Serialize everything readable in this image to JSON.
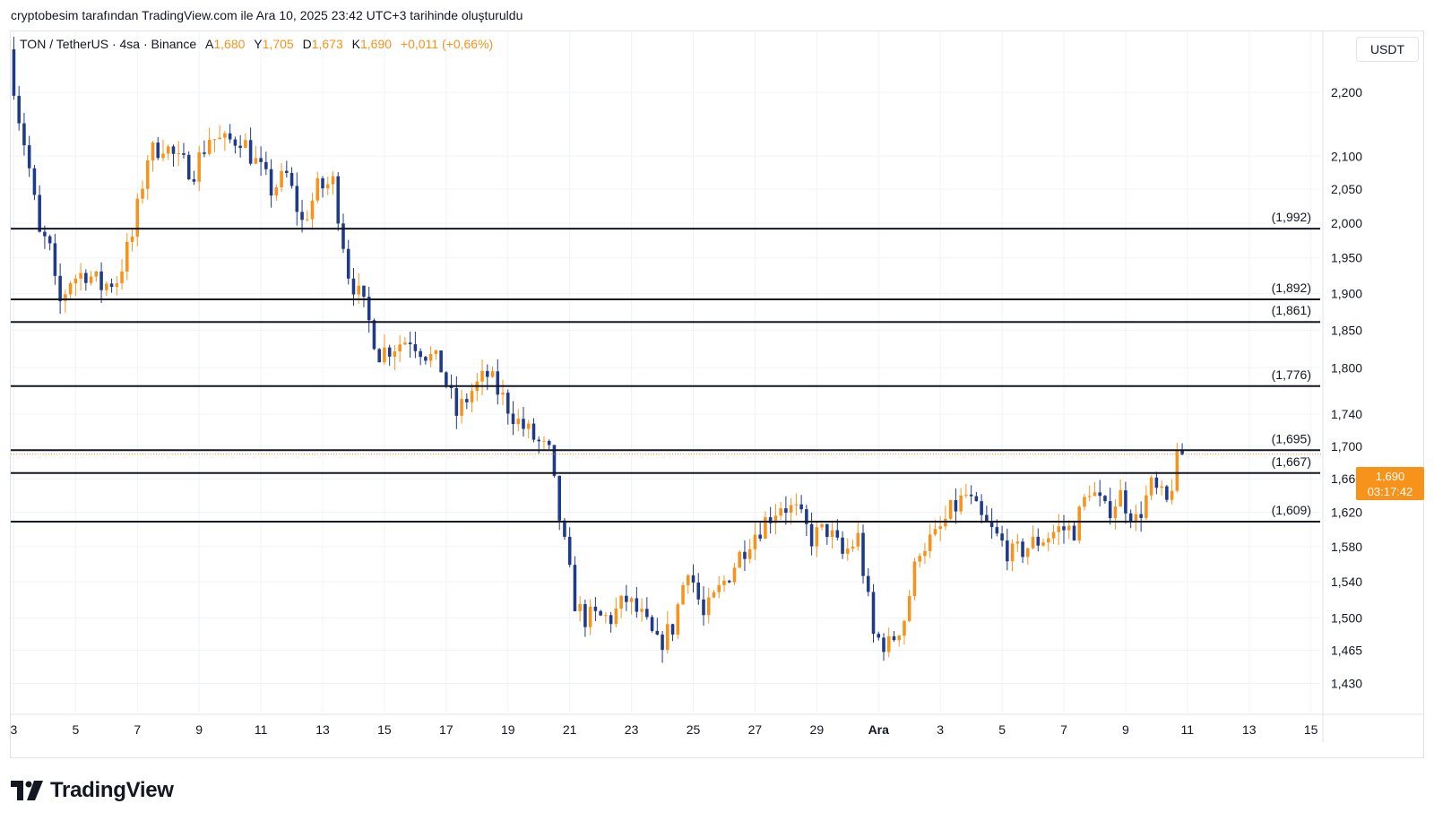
{
  "caption": "cryptobesim tarafından TradingView.com ile Ara 10, 2025 23:42 UTC+3 tarihinde oluşturuldu",
  "legend": {
    "symbol": "TON / TetherUS · 4sa · Binance",
    "open_label": "A",
    "open": "1,680",
    "high_label": "Y",
    "high": "1,705",
    "low_label": "D",
    "low": "1,673",
    "close_label": "K",
    "close": "1,690",
    "change": "+0,011 (+0,66%)"
  },
  "currency": "USDT",
  "price_tag": {
    "price": "1,690",
    "countdown": "03:17:42"
  },
  "brand": {
    "name": "TradingView"
  },
  "colors": {
    "up": "#f7931a",
    "down": "#1e3a8a",
    "level_line": "#131722",
    "grid": "#f0f3fa",
    "price_line": "#f7931a"
  },
  "chart_data": {
    "type": "candlestick",
    "scale": "log",
    "ylim": [
      1.4,
      2.3
    ],
    "y_ticks": [
      {
        "value": 2.2,
        "label": "2,200"
      },
      {
        "value": 2.1,
        "label": "2,100"
      },
      {
        "value": 2.05,
        "label": "2,050"
      },
      {
        "value": 2.0,
        "label": "2,000"
      },
      {
        "value": 1.95,
        "label": "1,950"
      },
      {
        "value": 1.9,
        "label": "1,900"
      },
      {
        "value": 1.85,
        "label": "1,850"
      },
      {
        "value": 1.8,
        "label": "1,800"
      },
      {
        "value": 1.74,
        "label": "1,740"
      },
      {
        "value": 1.7,
        "label": "1,700"
      },
      {
        "value": 1.66,
        "label": "1,660"
      },
      {
        "value": 1.62,
        "label": "1,620"
      },
      {
        "value": 1.58,
        "label": "1,580"
      },
      {
        "value": 1.54,
        "label": "1,540"
      },
      {
        "value": 1.5,
        "label": "1,500"
      },
      {
        "value": 1.465,
        "label": "1,465"
      },
      {
        "value": 1.43,
        "label": "1,430"
      }
    ],
    "x_ticks": [
      {
        "day": 3,
        "label": "3"
      },
      {
        "day": 5,
        "label": "5"
      },
      {
        "day": 7,
        "label": "7"
      },
      {
        "day": 9,
        "label": "9"
      },
      {
        "day": 11,
        "label": "11"
      },
      {
        "day": 13,
        "label": "13"
      },
      {
        "day": 15,
        "label": "15"
      },
      {
        "day": 17,
        "label": "17"
      },
      {
        "day": 19,
        "label": "19"
      },
      {
        "day": 21,
        "label": "21"
      },
      {
        "day": 23,
        "label": "23"
      },
      {
        "day": 25,
        "label": "25"
      },
      {
        "day": 27,
        "label": "27"
      },
      {
        "day": 29,
        "label": "29"
      },
      {
        "day": 31,
        "label": "Ara"
      },
      {
        "day": 33,
        "label": "3"
      },
      {
        "day": 35,
        "label": "5"
      },
      {
        "day": 37,
        "label": "7"
      },
      {
        "day": 39,
        "label": "9"
      },
      {
        "day": 41,
        "label": "11"
      },
      {
        "day": 43,
        "label": "13"
      },
      {
        "day": 45,
        "label": "15"
      }
    ],
    "x_range": [
      2.9,
      45.3
    ],
    "levels": [
      {
        "value": 1.992,
        "label": "(1,992)"
      },
      {
        "value": 1.892,
        "label": "(1,892)"
      },
      {
        "value": 1.861,
        "label": "(1,861)"
      },
      {
        "value": 1.776,
        "label": "(1,776)"
      },
      {
        "value": 1.695,
        "label": "(1,695)"
      },
      {
        "value": 1.667,
        "label": "(1,667)"
      },
      {
        "value": 1.609,
        "label": "(1,609)"
      }
    ],
    "last_price": 1.69,
    "ohlc_path": [
      [
        3.0,
        2.27
      ],
      [
        3.3,
        2.17
      ],
      [
        3.6,
        2.1
      ],
      [
        4.0,
        1.98
      ],
      [
        4.3,
        1.97
      ],
      [
        4.6,
        1.88
      ],
      [
        5.0,
        1.92
      ],
      [
        5.5,
        1.93
      ],
      [
        6.0,
        1.91
      ],
      [
        6.5,
        1.92
      ],
      [
        7.0,
        1.98
      ],
      [
        7.5,
        2.1
      ],
      [
        8.0,
        2.12
      ],
      [
        8.5,
        2.09
      ],
      [
        9.0,
        2.08
      ],
      [
        9.5,
        2.13
      ],
      [
        10.0,
        2.12
      ],
      [
        10.5,
        2.13
      ],
      [
        11.0,
        2.09
      ],
      [
        11.5,
        2.05
      ],
      [
        12.0,
        2.07
      ],
      [
        12.5,
        2.0
      ],
      [
        13.0,
        2.05
      ],
      [
        13.5,
        2.06
      ],
      [
        14.0,
        1.93
      ],
      [
        14.5,
        1.88
      ],
      [
        15.0,
        1.82
      ],
      [
        15.5,
        1.83
      ],
      [
        16.0,
        1.84
      ],
      [
        16.5,
        1.82
      ],
      [
        17.0,
        1.8
      ],
      [
        17.5,
        1.74
      ],
      [
        18.0,
        1.77
      ],
      [
        18.5,
        1.79
      ],
      [
        19.0,
        1.76
      ],
      [
        19.5,
        1.73
      ],
      [
        20.0,
        1.71
      ],
      [
        20.5,
        1.69
      ],
      [
        20.8,
        1.62
      ],
      [
        21.0,
        1.58
      ],
      [
        21.3,
        1.52
      ],
      [
        21.6,
        1.5
      ],
      [
        22.0,
        1.5
      ],
      [
        22.5,
        1.5
      ],
      [
        23.0,
        1.52
      ],
      [
        23.5,
        1.5
      ],
      [
        24.0,
        1.47
      ],
      [
        24.5,
        1.49
      ],
      [
        25.0,
        1.56
      ],
      [
        25.5,
        1.5
      ],
      [
        26.0,
        1.53
      ],
      [
        26.5,
        1.56
      ],
      [
        27.0,
        1.59
      ],
      [
        27.5,
        1.61
      ],
      [
        28.0,
        1.63
      ],
      [
        28.5,
        1.62
      ],
      [
        29.0,
        1.59
      ],
      [
        29.5,
        1.6
      ],
      [
        30.0,
        1.57
      ],
      [
        30.5,
        1.59
      ],
      [
        31.0,
        1.48
      ],
      [
        31.5,
        1.47
      ],
      [
        32.0,
        1.5
      ],
      [
        32.5,
        1.58
      ],
      [
        33.0,
        1.59
      ],
      [
        33.5,
        1.62
      ],
      [
        34.0,
        1.64
      ],
      [
        34.5,
        1.61
      ],
      [
        35.0,
        1.59
      ],
      [
        35.5,
        1.57
      ],
      [
        36.0,
        1.58
      ],
      [
        36.5,
        1.59
      ],
      [
        37.0,
        1.6
      ],
      [
        37.5,
        1.6
      ],
      [
        38.0,
        1.65
      ],
      [
        38.5,
        1.62
      ],
      [
        39.0,
        1.64
      ],
      [
        39.5,
        1.61
      ],
      [
        40.0,
        1.65
      ],
      [
        40.5,
        1.63
      ],
      [
        40.9,
        1.69
      ]
    ],
    "candles_per_day": 6,
    "seed": 7
  }
}
